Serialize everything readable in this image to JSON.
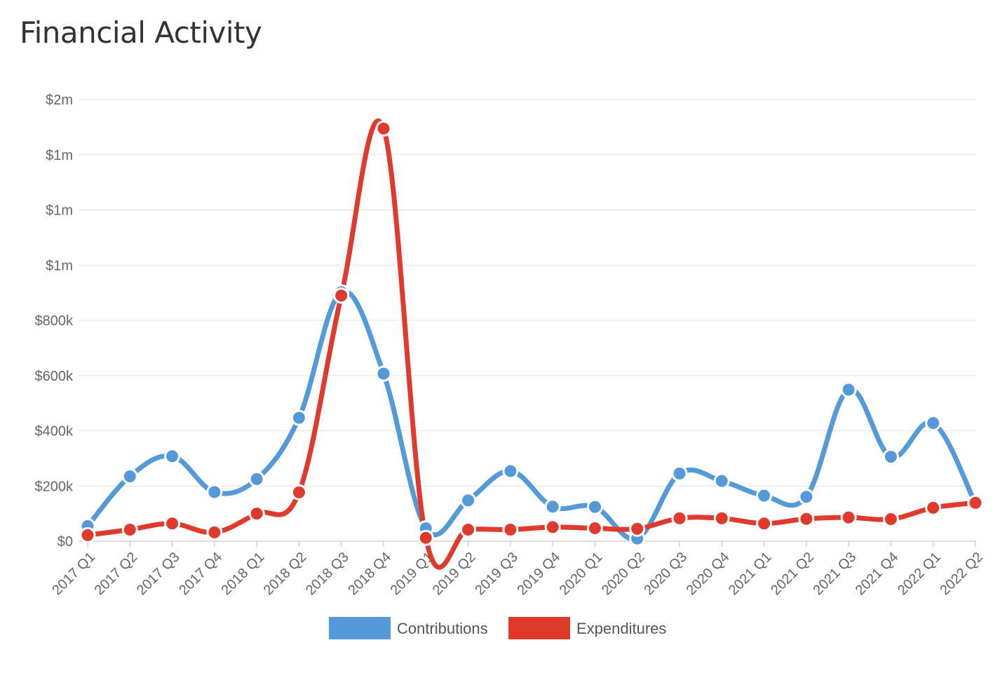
{
  "title": "Financial Activity",
  "chart_data": {
    "type": "line",
    "title": "Financial Activity",
    "xlabel": "",
    "ylabel": "",
    "categories": [
      "2017 Q1",
      "2017 Q2",
      "2017 Q3",
      "2017 Q4",
      "2018 Q1",
      "2018 Q2",
      "2018 Q3",
      "2018 Q4",
      "2019 Q1",
      "2019 Q2",
      "2019 Q3",
      "2019 Q4",
      "2020 Q1",
      "2020 Q2",
      "2020 Q3",
      "2020 Q4",
      "2021 Q1",
      "2021 Q2",
      "2021 Q3",
      "2021 Q4",
      "2022 Q1",
      "2022 Q2"
    ],
    "series": [
      {
        "name": "Contributions",
        "color": "#5499d8",
        "values": [
          55000,
          235000,
          308000,
          178000,
          225000,
          447000,
          902000,
          607000,
          47000,
          148000,
          254000,
          125000,
          124000,
          10000,
          245000,
          218000,
          165000,
          161000,
          549000,
          306000,
          428000,
          136000
        ]
      },
      {
        "name": "Expenditures",
        "color": "#e03a2c",
        "values": [
          22000,
          42000,
          64000,
          32000,
          100000,
          177000,
          890000,
          1495000,
          12000,
          42000,
          42000,
          51000,
          47000,
          45000,
          83000,
          83000,
          64000,
          81000,
          86000,
          80000,
          121000,
          139000
        ]
      }
    ],
    "ylim": [
      0,
      1600000
    ],
    "yticks": [
      {
        "value": 0,
        "label": "$0"
      },
      {
        "value": 200000,
        "label": "$200k"
      },
      {
        "value": 400000,
        "label": "$400k"
      },
      {
        "value": 600000,
        "label": "$600k"
      },
      {
        "value": 800000,
        "label": "$800k"
      },
      {
        "value": 1000000,
        "label": "$1m"
      },
      {
        "value": 1200000,
        "label": "$1m"
      },
      {
        "value": 1400000,
        "label": "$1m"
      },
      {
        "value": 1600000,
        "label": "$2m"
      }
    ],
    "grid": true,
    "legend_position": "bottom-center",
    "curve": "smooth"
  }
}
